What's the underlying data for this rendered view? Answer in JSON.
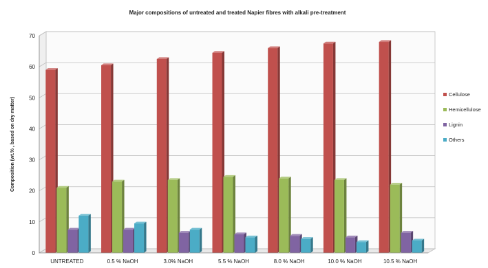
{
  "chart_data": {
    "type": "bar",
    "style": "3d-clustered-column",
    "title": "Major  compositions of untreated and treated Napier fibres with alkali  pre-treatment",
    "xlabel": "",
    "ylabel": "Composition (wt.% , based on dry matter)",
    "ylim": [
      0,
      70
    ],
    "yticks": [
      "0",
      "10",
      "20",
      "30",
      "40",
      "50",
      "60",
      "70"
    ],
    "grid": true,
    "legend_position": "right",
    "categories": [
      "UNTREATED",
      "0.5 % NaOH",
      "3.0% NaOH",
      "5.5 % NaOH",
      "8.0 % NaOH",
      "10.0 % NaOH",
      "10.5 % NaOH"
    ],
    "series": [
      {
        "name": "Cellulose",
        "color": "#c0504d",
        "values": [
          59,
          60.5,
          62.5,
          64.5,
          66,
          67.5,
          68
        ]
      },
      {
        "name": "Hemicellulose",
        "color": "#9bbb59",
        "values": [
          21,
          23,
          23.5,
          24.5,
          24,
          23.5,
          22
        ]
      },
      {
        "name": "Lignin",
        "color": "#8064a2",
        "values": [
          7.5,
          7.5,
          6.5,
          6,
          5.5,
          5,
          6.5
        ]
      },
      {
        "name": "Others",
        "color": "#4bacc6",
        "values": [
          12,
          9.5,
          7.5,
          5,
          4.5,
          3.5,
          4
        ]
      }
    ]
  }
}
